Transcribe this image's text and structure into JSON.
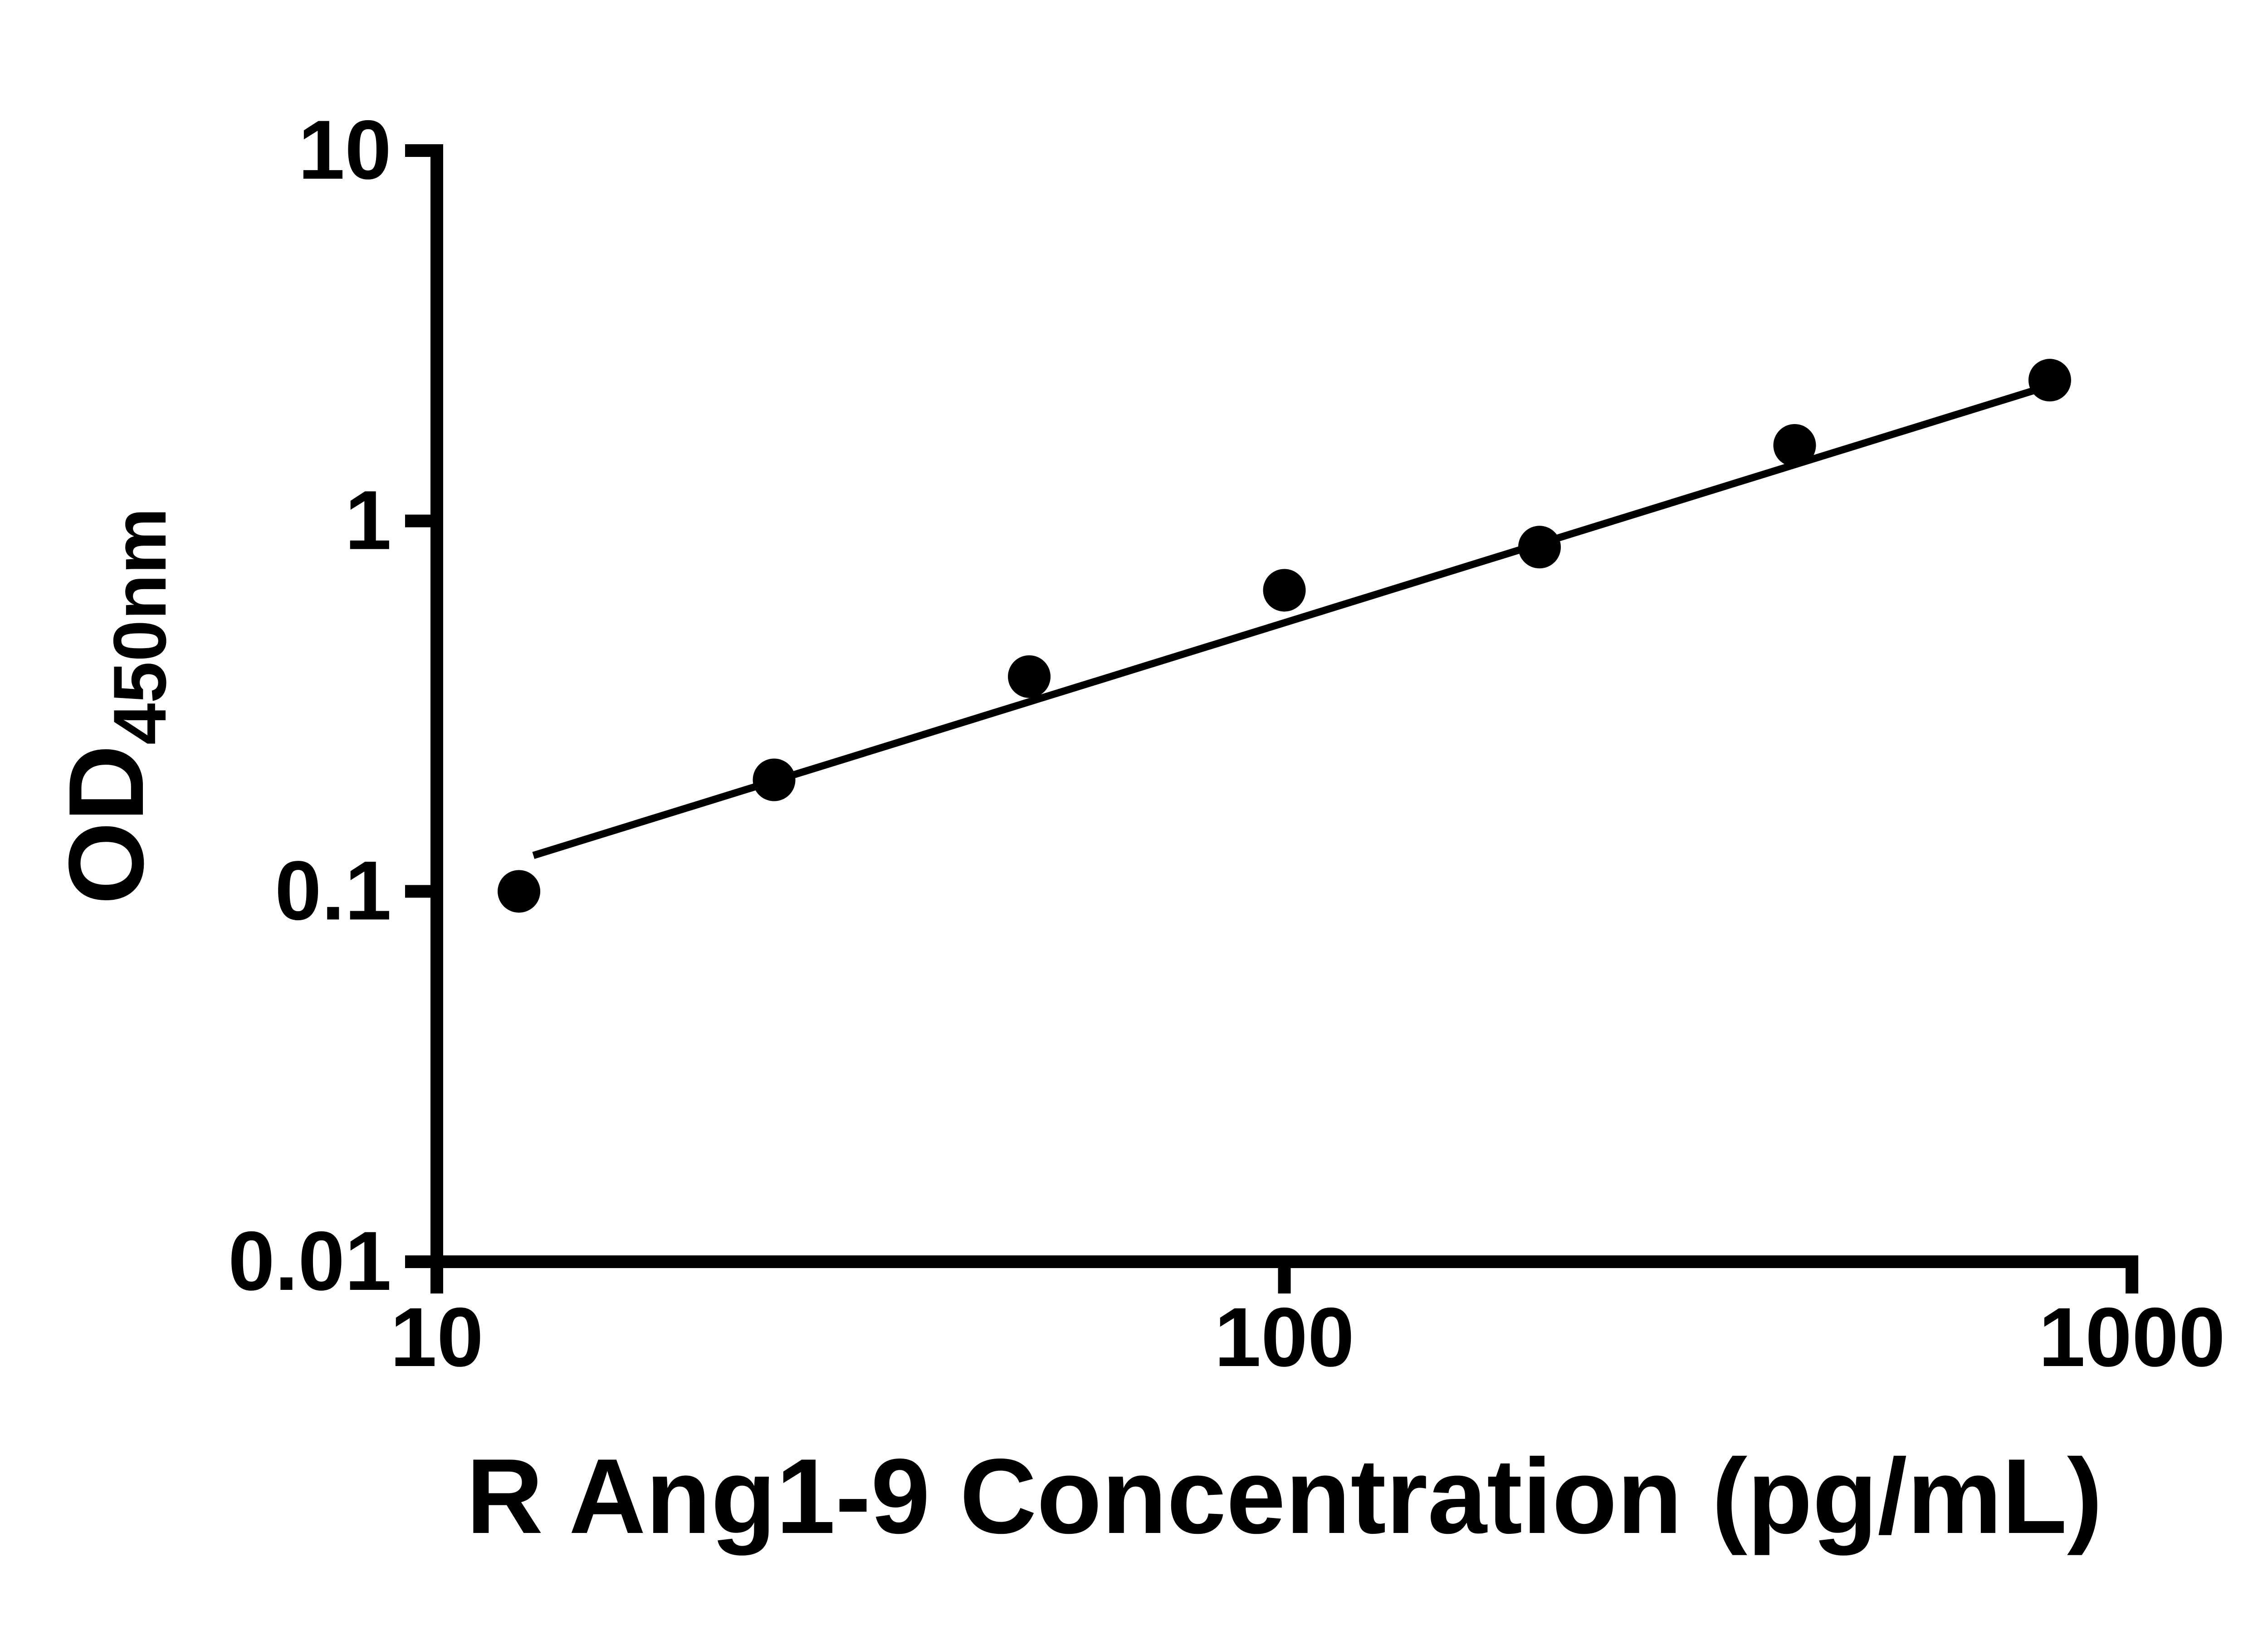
{
  "chart_data": {
    "type": "scatter",
    "title": "",
    "xlabel": "R Ang1-9 Concentration (pg/mL)",
    "ylabel_main": "OD",
    "ylabel_sub": "450nm",
    "x_scale": "log",
    "y_scale": "log",
    "xlim": [
      10,
      1000
    ],
    "ylim": [
      0.01,
      10
    ],
    "x_ticks": [
      10,
      100,
      1000
    ],
    "x_tick_labels": [
      "10",
      "100",
      "1000"
    ],
    "y_ticks": [
      10,
      1,
      0.1,
      0.01
    ],
    "y_tick_labels": [
      "10",
      "1",
      "0.1",
      "0.01"
    ],
    "grid": false,
    "legend": false,
    "points": {
      "x": [
        12.5,
        25,
        50,
        100,
        200,
        400,
        800
      ],
      "y": [
        0.1,
        0.2,
        0.38,
        0.65,
        0.85,
        1.6,
        2.4
      ]
    },
    "fit_line": {
      "x": [
        13,
        805
      ],
      "y": [
        0.125,
        2.33
      ]
    },
    "colors": {
      "points": "#000000",
      "line": "#000000",
      "axis": "#000000",
      "background": "#ffffff"
    }
  }
}
